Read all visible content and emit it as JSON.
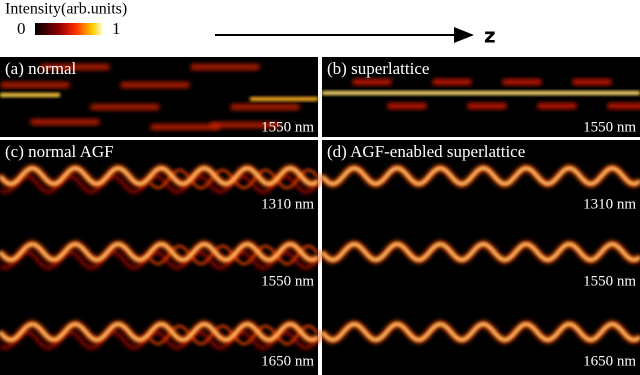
{
  "colorbar": {
    "title": "Intensity(arb.units)",
    "min_label": "0",
    "max_label": "1"
  },
  "axis_label": "z",
  "panels": [
    {
      "label": "(a) normal",
      "wavelengths": [
        "1550 nm"
      ]
    },
    {
      "label": "(b) superlattice",
      "wavelengths": [
        "1550 nm"
      ]
    },
    {
      "label": "(c) normal AGF",
      "wavelengths": [
        "1310 nm",
        "1550 nm",
        "1650 nm"
      ]
    },
    {
      "label": "(d) AGF-enabled superlattice",
      "wavelengths": [
        "1310 nm",
        "1550 nm",
        "1650 nm"
      ]
    }
  ]
}
